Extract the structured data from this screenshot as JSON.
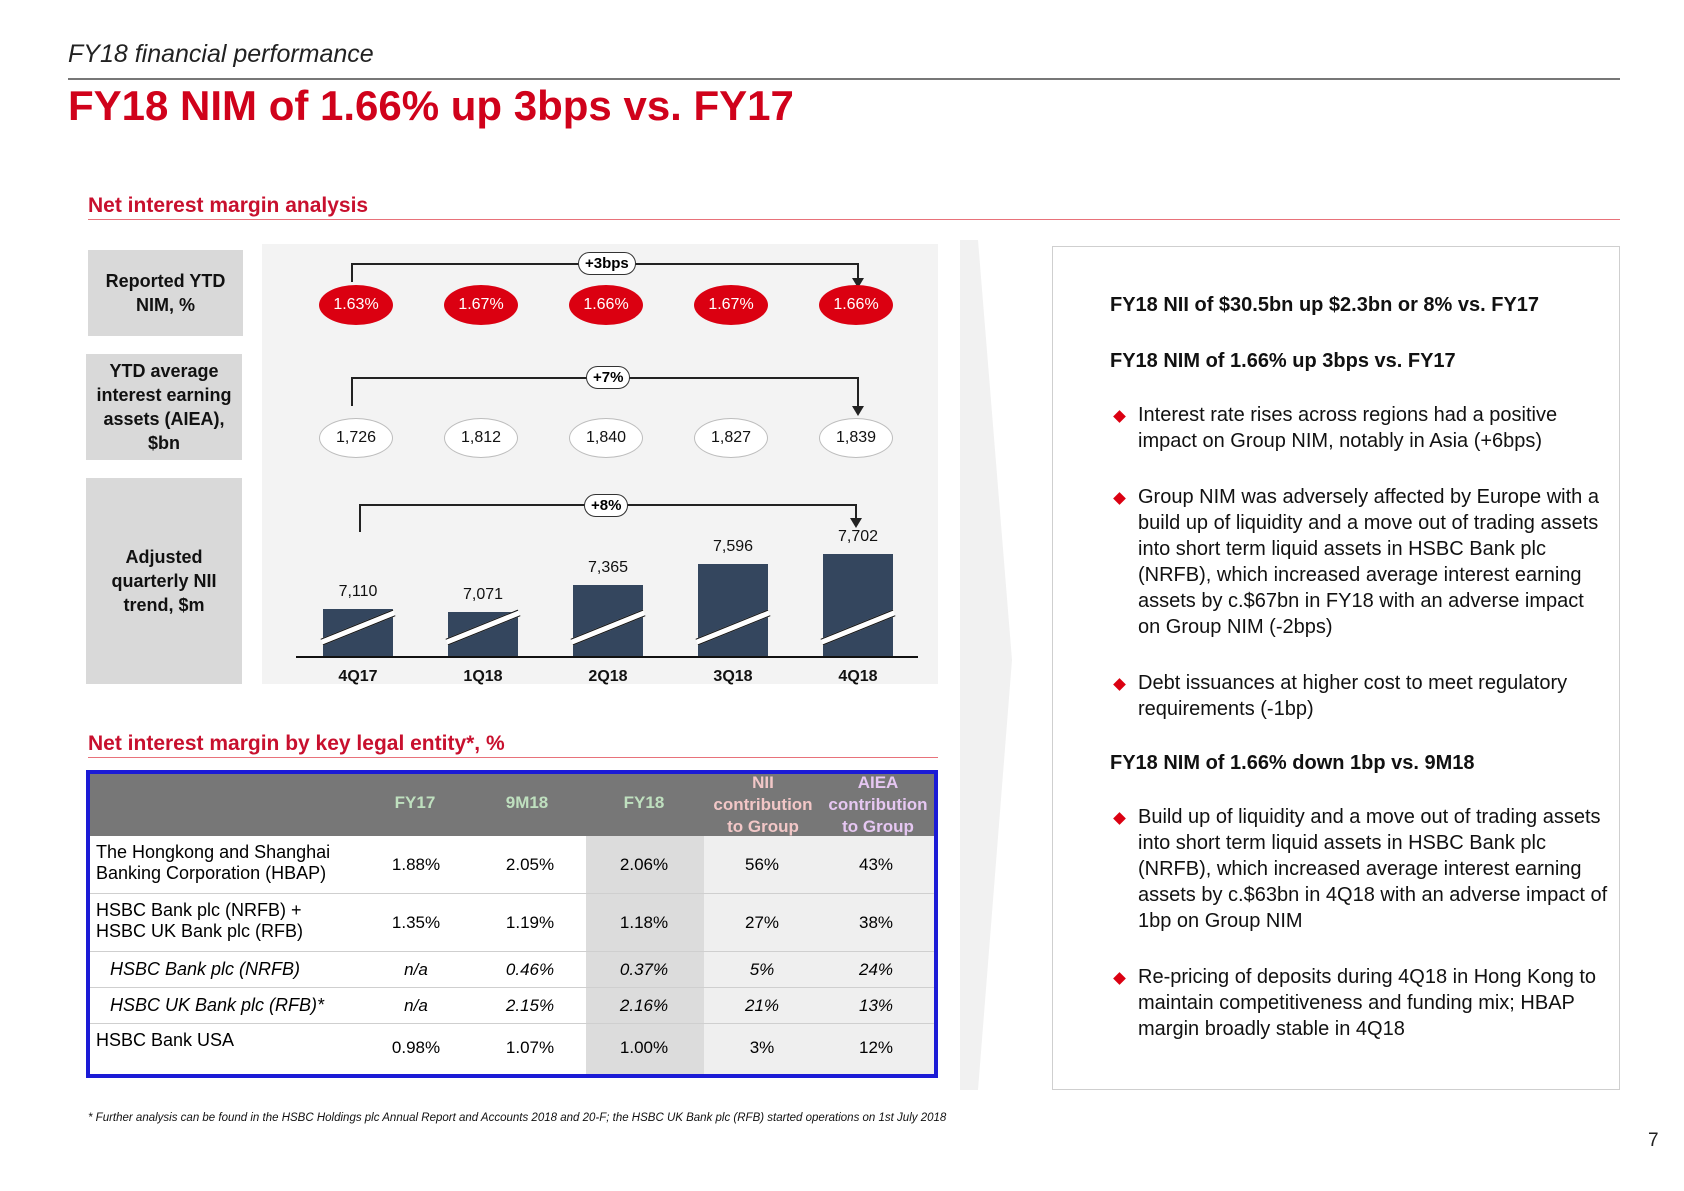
{
  "kicker": "FY18 financial performance",
  "title": "FY18 NIM of 1.66% up 3bps vs. FY17",
  "nim_section_title": "Net interest margin analysis",
  "row_labels": {
    "nim": "Reported YTD NIM, %",
    "aiea": "YTD average interest earning assets (AIEA), $bn",
    "nii": "Adjusted quarterly NII trend, $m"
  },
  "quarters": [
    "4Q17",
    "1Q18",
    "2Q18",
    "3Q18",
    "4Q18"
  ],
  "nim_values": [
    "1.63%",
    "1.67%",
    "1.66%",
    "1.67%",
    "1.66%"
  ],
  "nim_change": "+3bps",
  "aiea_values": [
    "1,726",
    "1,812",
    "1,840",
    "1,827",
    "1,839"
  ],
  "aiea_change": "+7%",
  "nii_change": "+8%",
  "chart_data": {
    "type": "bar",
    "categories": [
      "4Q17",
      "1Q18",
      "2Q18",
      "3Q18",
      "4Q18"
    ],
    "values": [
      7110,
      7071,
      7365,
      7596,
      7702
    ],
    "value_labels": [
      "7,110",
      "7,071",
      "7,365",
      "7,596",
      "7,702"
    ],
    "axis_break": true,
    "title": "Adjusted quarterly NII trend, $m",
    "xlabel": "",
    "ylabel": ""
  },
  "entity_section_title": "Net interest margin by key legal entity*, %",
  "table": {
    "headers": [
      "FY17",
      "9M18",
      "FY18",
      "NII contribution to Group",
      "AIEA contribution to Group"
    ],
    "rows": [
      {
        "name": "The Hongkong and Shanghai Banking Corporation (HBAP)",
        "values": [
          "1.88%",
          "2.05%",
          "2.06%",
          "56%",
          "43%"
        ]
      },
      {
        "name": "HSBC Bank plc (NRFB) + HSBC UK Bank plc (RFB)",
        "values": [
          "1.35%",
          "1.19%",
          "1.18%",
          "27%",
          "38%"
        ]
      },
      {
        "name": "HSBC Bank plc (NRFB)",
        "values": [
          "n/a",
          "0.46%",
          "0.37%",
          "5%",
          "24%"
        ]
      },
      {
        "name": "HSBC UK Bank plc (RFB)*",
        "values": [
          "n/a",
          "2.15%",
          "2.16%",
          "21%",
          "13%"
        ]
      },
      {
        "name": "HSBC Bank USA",
        "values": [
          "0.98%",
          "1.07%",
          "1.00%",
          "3%",
          "12%"
        ]
      }
    ]
  },
  "footnote": "* Further analysis can be found in the HSBC Holdings plc Annual Report and Accounts 2018 and 20-F; the HSBC UK Bank plc (RFB) started operations on 1st July 2018",
  "right": {
    "head1": "FY18 NII of $30.5bn up $2.3bn or 8% vs. FY17",
    "head2": "FY18 NIM of 1.66% up 3bps vs. FY17",
    "bullets1": [
      "Interest rate rises across regions had a positive impact on Group NIM, notably in Asia (+6bps)",
      "Group NIM was adversely affected by Europe with a build up of liquidity and a move out of trading assets into short term liquid assets in HSBC Bank plc (NRFB), which increased average interest earning assets by c.$67bn in FY18 with an adverse impact on Group NIM (-2bps)",
      "Debt issuances at higher cost to meet regulatory requirements (-1bp)"
    ],
    "head3": "FY18 NIM of 1.66% down 1bp vs. 9M18",
    "bullets2": [
      "Build up of liquidity and a move out of trading assets into short term liquid assets in HSBC Bank plc (NRFB), which increased average interest earning assets by c.$63bn in 4Q18 with an adverse impact of 1bp on Group NIM",
      "Re-pricing of deposits during 4Q18 in Hong Kong to maintain competitiveness and funding mix; HBAP margin broadly stable in 4Q18"
    ]
  },
  "page_number": "7",
  "colors": {
    "accent": "#db0011",
    "bar": "#34465e",
    "table_border": "#1b1bd6"
  }
}
